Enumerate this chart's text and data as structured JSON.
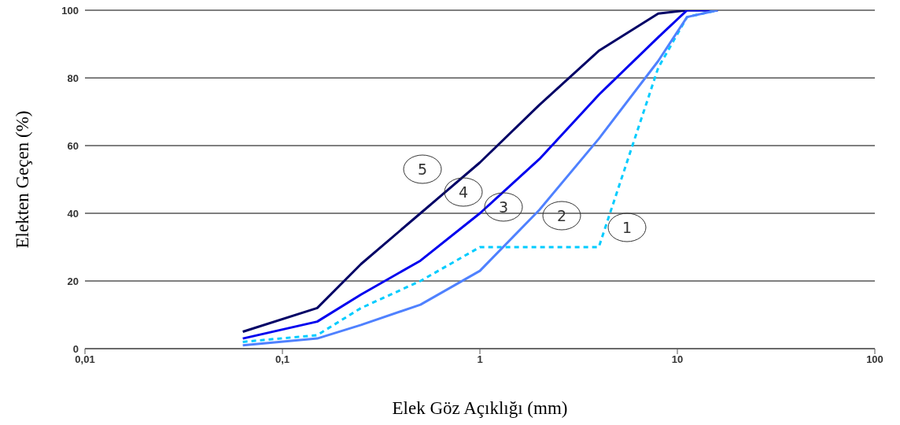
{
  "chart_data": {
    "type": "line",
    "xlabel": "Elek Göz Açıklığı (mm)",
    "ylabel": "Elekten Geçen (%)",
    "x": [
      0.063,
      0.15,
      0.25,
      0.5,
      1,
      2,
      4,
      8,
      11.2,
      16
    ],
    "series": [
      {
        "color": "#000066",
        "values": [
          5,
          12,
          25,
          40,
          55,
          72,
          88,
          99,
          100,
          100
        ]
      },
      {
        "color": "#0000ee",
        "values": [
          3,
          8,
          16,
          26,
          40,
          56,
          75,
          92,
          100,
          100
        ]
      },
      {
        "color": "#00ccff",
        "line_style": "dashed",
        "values": [
          2,
          4,
          12,
          20,
          30,
          30,
          30,
          83,
          98,
          100
        ]
      },
      {
        "color": "#4f81ff",
        "values": [
          1,
          3,
          7,
          13,
          23,
          41,
          62,
          85,
          98,
          100
        ]
      }
    ],
    "log": "x",
    "xlim": [
      0.01,
      100
    ],
    "xticks": [
      {
        "value": 0.01,
        "label": "0,01"
      },
      {
        "value": 0.1,
        "label": "0,1"
      },
      1,
      10,
      100
    ],
    "ylim": [
      0,
      100
    ],
    "yticks": [
      0,
      20,
      40,
      60,
      80,
      100
    ],
    "grid": "y",
    "marker": "none",
    "annotations": [
      "5",
      "4",
      "3",
      "2",
      "1"
    ]
  }
}
